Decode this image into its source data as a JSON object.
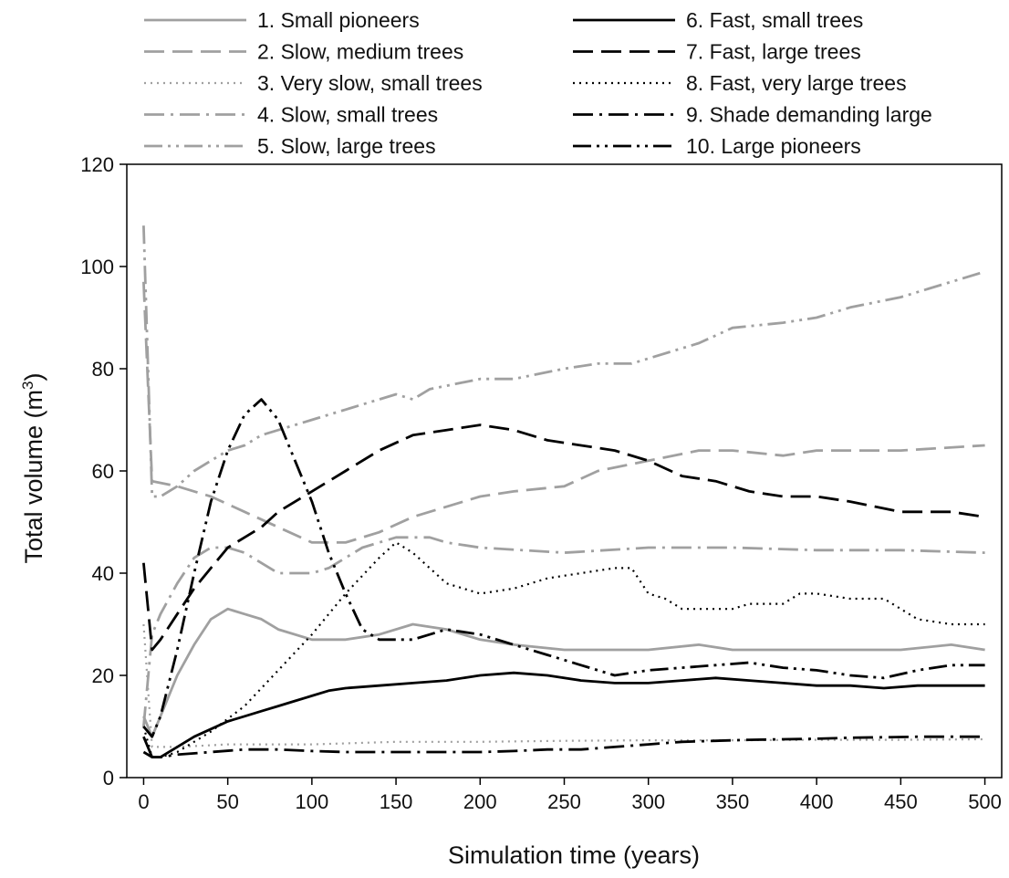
{
  "chart_data": {
    "type": "line",
    "title": "",
    "xlabel": "Simulation time (years)",
    "ylabel": "Total volume (m",
    "ylabel_superscript": "3",
    "ylabel_suffix": ")",
    "xlim": [
      -10,
      510
    ],
    "ylim": [
      0,
      120
    ],
    "xticks": [
      0,
      50,
      100,
      150,
      200,
      250,
      300,
      350,
      400,
      450,
      500
    ],
    "yticks": [
      0,
      20,
      40,
      60,
      80,
      100,
      120
    ],
    "grid": false,
    "legend_placement": "top",
    "series": [
      {
        "name": "1. Small pioneers",
        "color": "#a0a0a0",
        "dash": "solid",
        "x": [
          0,
          5,
          10,
          20,
          30,
          40,
          50,
          60,
          70,
          80,
          100,
          120,
          140,
          160,
          180,
          200,
          220,
          250,
          270,
          290,
          300,
          330,
          350,
          380,
          400,
          450,
          480,
          500
        ],
        "y": [
          12,
          8,
          12,
          20,
          26,
          31,
          33,
          32,
          31,
          29,
          27,
          27,
          28,
          30,
          29,
          27,
          26,
          25,
          25,
          25,
          25,
          26,
          25,
          25,
          25,
          25,
          26,
          25
        ]
      },
      {
        "name": "2. Slow, medium trees",
        "color": "#a0a0a0",
        "dash": "long",
        "x": [
          0,
          5,
          20,
          40,
          60,
          80,
          100,
          120,
          140,
          160,
          180,
          200,
          220,
          250,
          270,
          300,
          330,
          350,
          380,
          400,
          420,
          450,
          500
        ],
        "y": [
          97,
          58,
          57,
          55,
          52,
          49,
          46,
          46,
          48,
          51,
          53,
          55,
          56,
          57,
          60,
          62,
          64,
          64,
          63,
          64,
          64,
          64,
          65
        ]
      },
      {
        "name": "3. Very slow, small trees",
        "color": "#a0a0a0",
        "dash": "dot",
        "x": [
          0,
          5,
          10,
          20,
          50,
          100,
          150,
          200,
          250,
          300,
          350,
          400,
          450,
          500
        ],
        "y": [
          30,
          6,
          6,
          6,
          6.5,
          6.5,
          7,
          7,
          7.2,
          7.3,
          7.3,
          7.4,
          7.4,
          7.5
        ]
      },
      {
        "name": "4. Slow, small trees",
        "color": "#a0a0a0",
        "dash": "dashdot",
        "x": [
          0,
          5,
          10,
          20,
          30,
          40,
          50,
          60,
          70,
          80,
          90,
          100,
          110,
          120,
          130,
          140,
          150,
          160,
          170,
          180,
          200,
          250,
          300,
          350,
          400,
          450,
          500
        ],
        "y": [
          10,
          28,
          32,
          38,
          43,
          45,
          45,
          44,
          42,
          40,
          40,
          40,
          41,
          43,
          45,
          46,
          47,
          47,
          47,
          46,
          45,
          44,
          45,
          45,
          44.5,
          44.5,
          44
        ]
      },
      {
        "name": "5. Slow, large trees",
        "color": "#a0a0a0",
        "dash": "dashdotdot",
        "x": [
          0,
          5,
          10,
          20,
          30,
          40,
          50,
          60,
          70,
          80,
          90,
          100,
          110,
          120,
          130,
          150,
          160,
          170,
          200,
          220,
          250,
          270,
          290,
          300,
          330,
          350,
          380,
          400,
          420,
          450,
          480,
          500
        ],
        "y": [
          108,
          55,
          55,
          57,
          60,
          62,
          64,
          65,
          67,
          68,
          69,
          70,
          71,
          72,
          73,
          75,
          74,
          76,
          78,
          78,
          80,
          81,
          81,
          82,
          85,
          88,
          89,
          90,
          92,
          94,
          97,
          99
        ]
      },
      {
        "name": "6. Fast, small trees",
        "color": "#000000",
        "dash": "solid",
        "x": [
          0,
          5,
          10,
          20,
          30,
          40,
          50,
          60,
          70,
          80,
          90,
          100,
          110,
          120,
          140,
          160,
          180,
          200,
          220,
          240,
          260,
          280,
          300,
          320,
          340,
          360,
          380,
          400,
          420,
          440,
          460,
          480,
          500
        ],
        "y": [
          8,
          4,
          4,
          6,
          8,
          9.5,
          11,
          12,
          13,
          14,
          15,
          16,
          17,
          17.5,
          18,
          18.5,
          19,
          20,
          20.5,
          20,
          19,
          18.5,
          18.5,
          19,
          19.5,
          19,
          18.5,
          18,
          18,
          17.5,
          18,
          18,
          18
        ]
      },
      {
        "name": "7. Fast, large trees",
        "color": "#000000",
        "dash": "long",
        "x": [
          0,
          5,
          10,
          20,
          30,
          40,
          50,
          60,
          70,
          80,
          100,
          120,
          140,
          160,
          180,
          200,
          220,
          240,
          260,
          280,
          300,
          320,
          340,
          360,
          380,
          400,
          420,
          450,
          480,
          500
        ],
        "y": [
          42,
          25,
          27,
          32,
          37,
          41,
          45,
          47,
          49,
          52,
          56,
          60,
          64,
          67,
          68,
          69,
          68,
          66,
          65,
          64,
          62,
          59,
          58,
          56,
          55,
          55,
          54,
          52,
          52,
          51
        ]
      },
      {
        "name": "8. Fast, very large trees",
        "color": "#000000",
        "dash": "dot",
        "x": [
          0,
          5,
          10,
          20,
          40,
          60,
          80,
          100,
          120,
          140,
          150,
          160,
          170,
          180,
          190,
          200,
          220,
          240,
          260,
          280,
          290,
          300,
          310,
          320,
          330,
          340,
          350,
          360,
          380,
          390,
          400,
          420,
          440,
          460,
          480,
          500
        ],
        "y": [
          10,
          4,
          4,
          5,
          9,
          14,
          21,
          28,
          36,
          43,
          46,
          44,
          41,
          38,
          37,
          36,
          37,
          39,
          40,
          41,
          41,
          36,
          35,
          33,
          33,
          33,
          33,
          34,
          34,
          36,
          36,
          35,
          35,
          31,
          30,
          30
        ]
      },
      {
        "name": "9. Shade demanding large",
        "color": "#000000",
        "dash": "dashdot",
        "x": [
          0,
          5,
          10,
          20,
          40,
          60,
          80,
          100,
          120,
          140,
          160,
          180,
          200,
          220,
          240,
          260,
          280,
          300,
          320,
          340,
          360,
          380,
          400,
          420,
          440,
          460,
          480,
          500
        ],
        "y": [
          5,
          4,
          4,
          4.5,
          5,
          5.5,
          5.5,
          5.2,
          5,
          5,
          5,
          5,
          5,
          5.2,
          5.5,
          5.5,
          6,
          6.5,
          7,
          7.2,
          7.4,
          7.5,
          7.6,
          7.8,
          7.9,
          8,
          8,
          8
        ]
      },
      {
        "name": "10. Large pioneers",
        "color": "#000000",
        "dash": "dashdotdot",
        "x": [
          0,
          5,
          10,
          20,
          30,
          40,
          50,
          60,
          70,
          80,
          90,
          100,
          110,
          120,
          130,
          140,
          150,
          160,
          170,
          180,
          200,
          220,
          240,
          260,
          280,
          300,
          320,
          340,
          360,
          380,
          400,
          420,
          440,
          460,
          480,
          500
        ],
        "y": [
          10,
          8,
          12,
          25,
          40,
          54,
          64,
          71,
          74,
          70,
          62,
          54,
          44,
          36,
          29,
          27,
          27,
          27,
          28,
          29,
          28,
          26,
          24,
          22,
          20,
          21,
          21.5,
          22,
          22.5,
          21.5,
          21,
          20,
          19.5,
          21,
          22,
          22
        ]
      }
    ]
  }
}
